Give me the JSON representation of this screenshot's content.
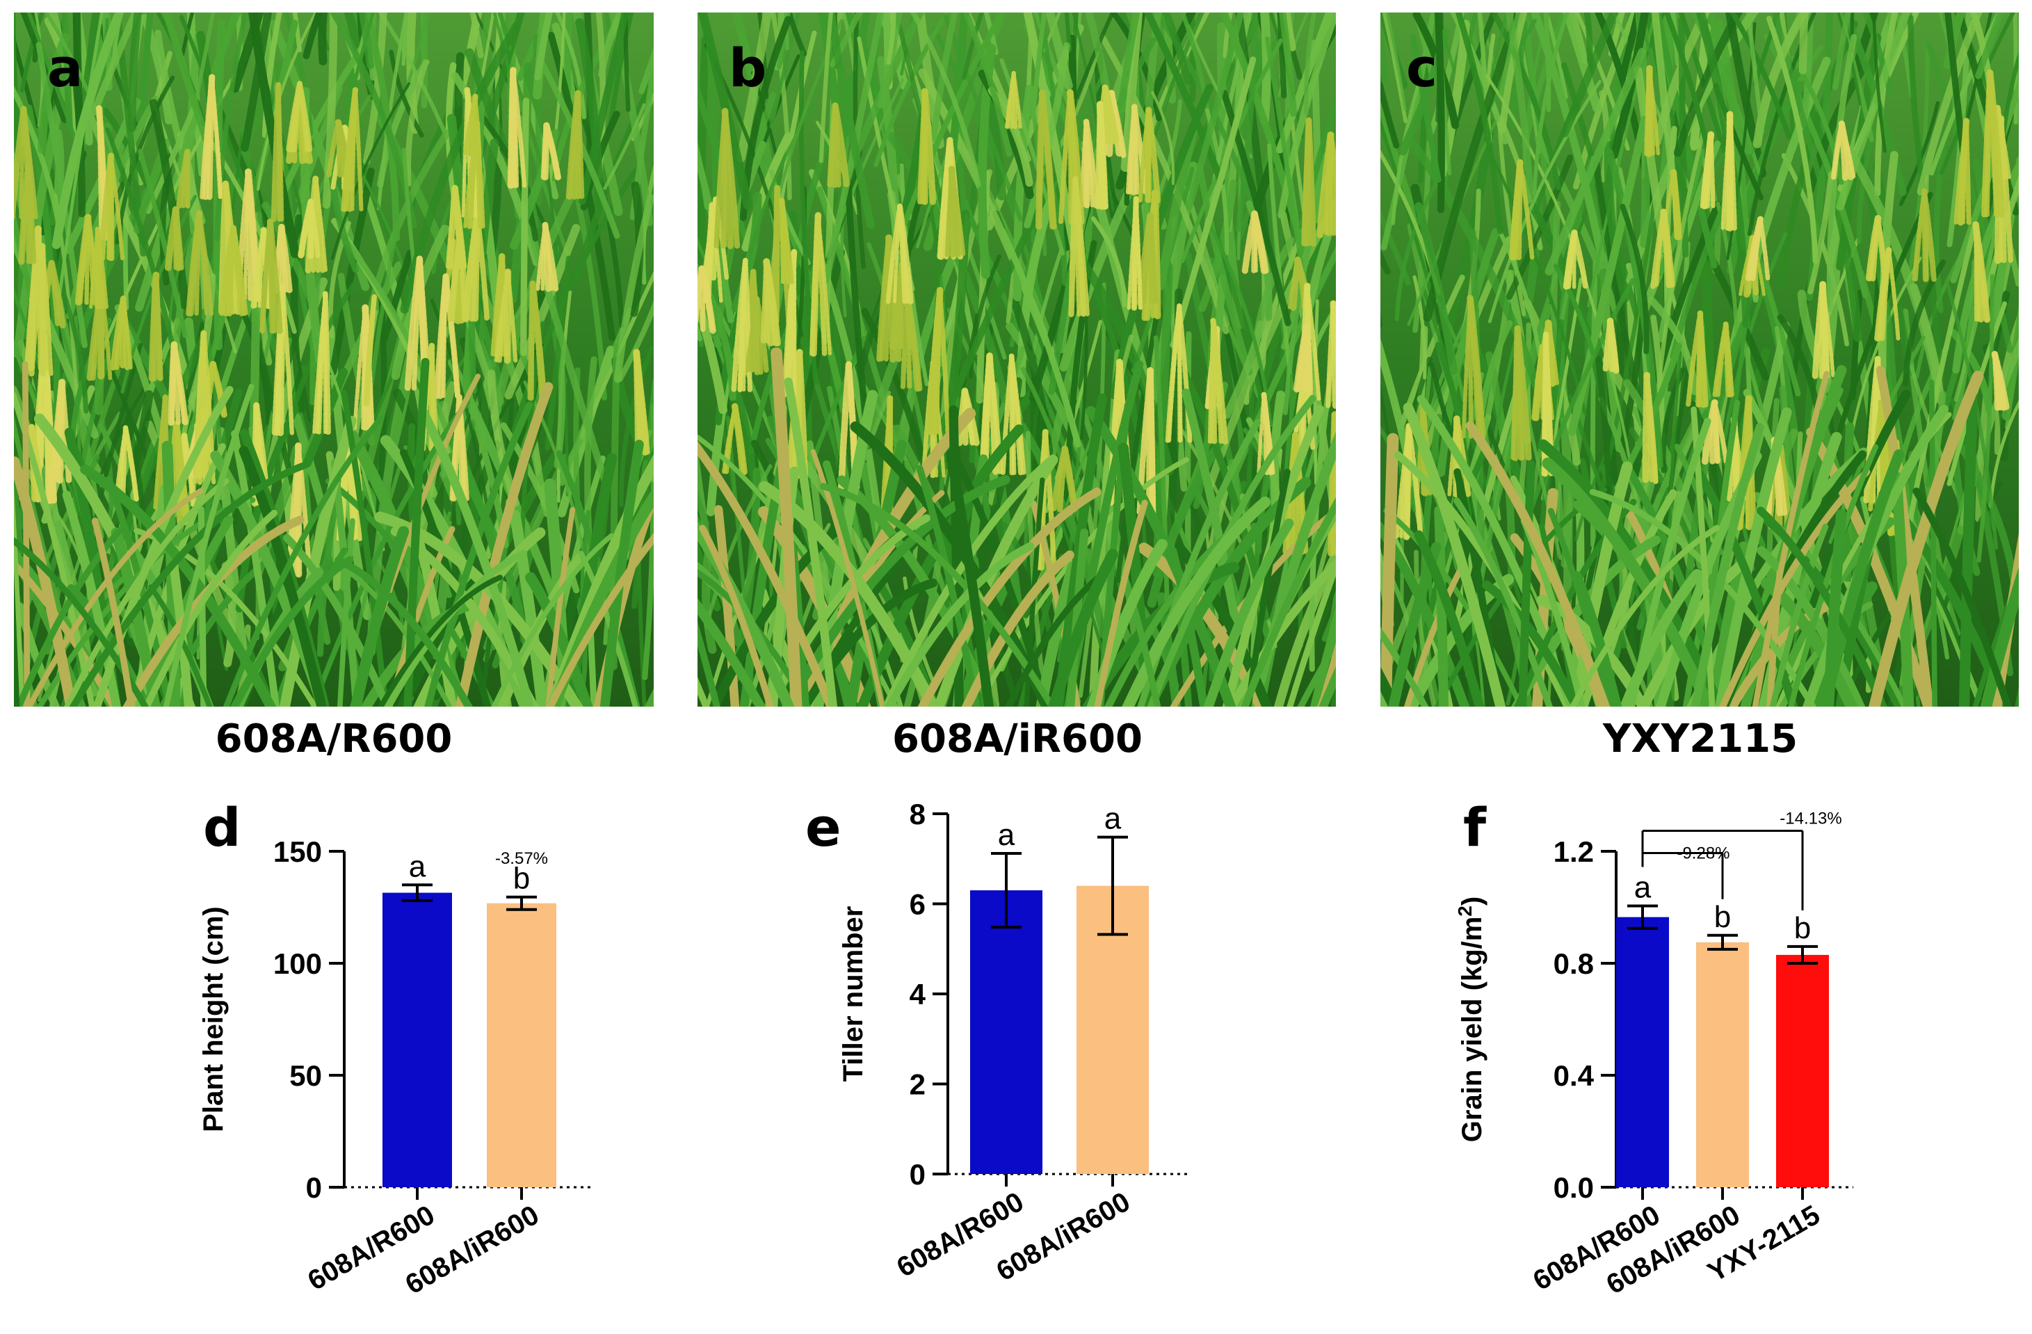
{
  "photos": [
    {
      "letter": "a",
      "caption": "608A/R600"
    },
    {
      "letter": "b",
      "caption": "608A/iR600"
    },
    {
      "letter": "c",
      "caption": "YXY2115"
    }
  ],
  "colors": {
    "blue": "#0a0ac8",
    "peach": "#fbbf80",
    "red": "#ff0c0c"
  },
  "chart_data": [
    {
      "panel": "d",
      "type": "bar",
      "ylabel": "Plant height (cm)",
      "ylim": [
        0,
        150
      ],
      "yticks": [
        "0",
        "50",
        "100",
        "150"
      ],
      "categories": [
        "608A/R600",
        "608A/iR600"
      ],
      "values": [
        131.5,
        126.8
      ],
      "errors": [
        3.5,
        2.8
      ],
      "letters": [
        "a",
        "b"
      ],
      "colors": [
        "#0a0ac8",
        "#fbbf80"
      ],
      "annotations": [
        "-3.57%"
      ]
    },
    {
      "panel": "e",
      "type": "bar",
      "ylabel": "Tiller number",
      "ylim": [
        0,
        8
      ],
      "yticks": [
        "0",
        "2",
        "4",
        "6",
        "8"
      ],
      "categories": [
        "608A/R600",
        "608A/iR600"
      ],
      "values": [
        6.3,
        6.4
      ],
      "errors": [
        0.82,
        1.08
      ],
      "letters": [
        "a",
        "a"
      ],
      "colors": [
        "#0a0ac8",
        "#fbbf80"
      ],
      "annotations": []
    },
    {
      "panel": "f",
      "type": "bar",
      "ylabel": "Grain yield (kg/m",
      "ylabel_sup": "2",
      "ylabel_end": ")",
      "ylim": [
        0,
        1.2
      ],
      "yticks": [
        "0.0",
        "0.4",
        "0.8",
        "1.2"
      ],
      "categories": [
        "608A/R600",
        "608A/iR600",
        "YXY-2115"
      ],
      "values": [
        0.965,
        0.875,
        0.83
      ],
      "errors": [
        0.04,
        0.025,
        0.03
      ],
      "letters": [
        "a",
        "b",
        "b"
      ],
      "colors": [
        "#0a0ac8",
        "#fbbf80",
        "#ff0c0c"
      ],
      "annotations": [
        "-9.28%",
        "-14.13%"
      ]
    }
  ]
}
